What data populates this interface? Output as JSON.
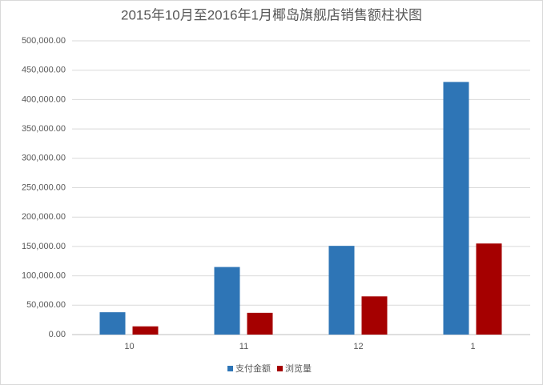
{
  "chart_data": {
    "type": "bar",
    "title": "2015年10月至2016年1月椰岛旗舰店销售额柱状图",
    "categories": [
      "10",
      "11",
      "12",
      "1"
    ],
    "series": [
      {
        "name": "支付金额",
        "color": "#2e75b6",
        "values": [
          38000,
          115000,
          151000,
          430000
        ]
      },
      {
        "name": "浏览量",
        "color": "#a50000",
        "values": [
          14000,
          37000,
          65000,
          155000
        ]
      }
    ],
    "ylim": [
      0,
      500000
    ],
    "yticks": [
      {
        "value": 0,
        "label": "0.00"
      },
      {
        "value": 50000,
        "label": "50,000.00"
      },
      {
        "value": 100000,
        "label": "100,000.00"
      },
      {
        "value": 150000,
        "label": "150,000.00"
      },
      {
        "value": 200000,
        "label": "200,000.00"
      },
      {
        "value": 250000,
        "label": "250,000.00"
      },
      {
        "value": 300000,
        "label": "300,000.00"
      },
      {
        "value": 350000,
        "label": "350,000.00"
      },
      {
        "value": 400000,
        "label": "400,000.00"
      },
      {
        "value": 450000,
        "label": "450,000.00"
      },
      {
        "value": 500000,
        "label": "500,000.00"
      }
    ],
    "grid": true,
    "legend": "bottom"
  }
}
